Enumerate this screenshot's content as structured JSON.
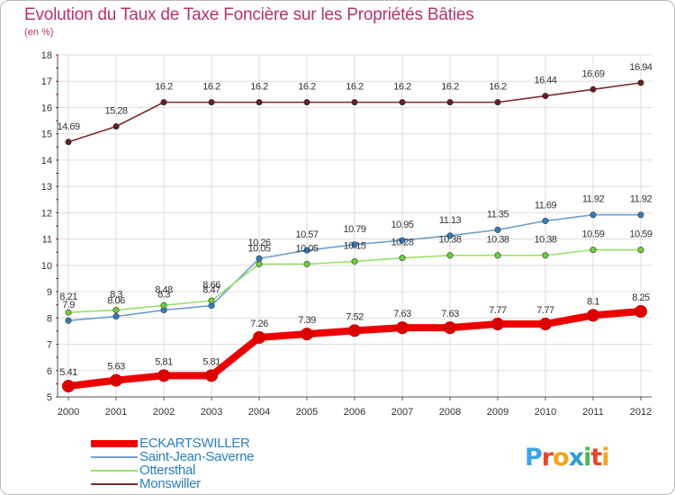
{
  "colors": {
    "title": "#b5326e",
    "legend_text": "#2a7fc1",
    "grid": "#dedede",
    "tick_marks": "#c8102e",
    "logo_letters": [
      "#3aa5e0",
      "#e8452e",
      "#f4a61c",
      "#2f9bd6",
      "#4db84d",
      "#e8452e",
      "#f4a61c"
    ]
  },
  "logo": {
    "text": "Proxiti"
  },
  "chart_data": {
    "type": "line",
    "title": "Evolution du Taux de Taxe Foncière sur les Propriétés Bâties",
    "subtitle": "(en %)",
    "xlabel": "",
    "ylabel": "",
    "x": [
      "2000",
      "2001",
      "2002",
      "2003",
      "2004",
      "2005",
      "2006",
      "2007",
      "2008",
      "2009",
      "2010",
      "2011",
      "2012"
    ],
    "ylim": [
      5,
      18
    ],
    "yticks": [
      "5",
      "6",
      "7",
      "8",
      "9",
      "10",
      "11",
      "12",
      "13",
      "14",
      "15",
      "16",
      "17",
      "18"
    ],
    "grid": true,
    "legend_position": "bottom-left",
    "series": [
      {
        "name": "ECKARTSWILLER",
        "color": "#ee0000",
        "marker_color": "#dd0000",
        "emphasis": true,
        "values": [
          5.41,
          5.63,
          5.81,
          5.81,
          7.26,
          7.39,
          7.52,
          7.63,
          7.63,
          7.77,
          7.77,
          8.1,
          8.25
        ],
        "labels": [
          "5.41",
          "5.63",
          "5.81",
          "5.81",
          "7.26",
          "7.39",
          "7.52",
          "7.63",
          "7.63",
          "7.77",
          "7.77",
          "8.1",
          "8.25"
        ]
      },
      {
        "name": "Saint-Jean-Saverne",
        "color": "#6e9ed0",
        "marker_color": "#2f7fc0",
        "emphasis": false,
        "values": [
          7.9,
          8.06,
          8.3,
          8.47,
          10.26,
          10.57,
          10.79,
          10.95,
          11.13,
          11.35,
          11.69,
          11.92,
          11.92
        ],
        "labels": [
          "7.9",
          "8.06",
          "8.3",
          "8.47",
          "10.26",
          "10.57",
          "10.79",
          "10.95",
          "11.13",
          "11.35",
          "11.69",
          "11.92",
          "11.92"
        ]
      },
      {
        "name": "Ottersthal",
        "color": "#99e066",
        "marker_color": "#6fcf3a",
        "emphasis": false,
        "values": [
          8.21,
          8.3,
          8.48,
          8.66,
          10.05,
          10.05,
          10.15,
          10.28,
          10.38,
          10.38,
          10.38,
          10.59,
          10.59
        ],
        "labels": [
          "8.21",
          "8.3",
          "8.48",
          "8.66",
          "10.05",
          "10.05",
          "10.15",
          "10.28",
          "10.38",
          "10.38",
          "10.38",
          "10.59",
          "10.59"
        ]
      },
      {
        "name": "Monswiller",
        "color": "#7a2a2a",
        "marker_color": "#661f1f",
        "emphasis": false,
        "values": [
          14.69,
          15.28,
          16.2,
          16.2,
          16.2,
          16.2,
          16.2,
          16.2,
          16.2,
          16.2,
          16.44,
          16.69,
          16.94
        ],
        "labels": [
          "14.69",
          "15.28",
          "16.2",
          "16.2",
          "16.2",
          "16.2",
          "16.2",
          "16.2",
          "16.2",
          "16.2",
          "16.44",
          "16.69",
          "16.94"
        ]
      }
    ]
  }
}
